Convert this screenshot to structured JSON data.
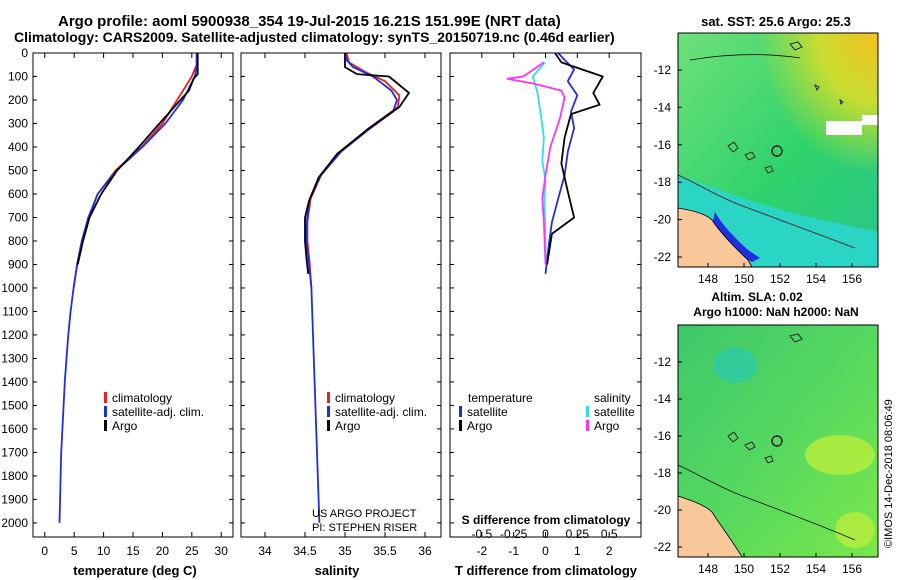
{
  "header": {
    "line1": "Argo profile: aoml 5900938_354 19-Jul-2015 16.21S 151.99E (NRT data)",
    "line2": "Climatology: CARS2009. Satellite-adjusted climatology: synTS_20150719.nc (0.46d earlier)"
  },
  "colors": {
    "climatology": "#e8231d",
    "satellite": "#1f2ee0",
    "argo": "#000000",
    "argo_s": "#ff33ff",
    "sat_s": "#2ee0e0",
    "land": "#f8c89a"
  },
  "chart_data": [
    {
      "type": "line",
      "id": "temperature",
      "xlabel": "temperature (deg C)",
      "xlim": [
        -2,
        32
      ],
      "xticks": [
        0,
        5,
        10,
        15,
        20,
        25,
        30
      ],
      "ylim": [
        0,
        2060
      ],
      "yticks": [
        0,
        100,
        200,
        300,
        400,
        500,
        600,
        700,
        800,
        900,
        1000,
        1100,
        1200,
        1300,
        1400,
        1500,
        1600,
        1700,
        1800,
        1900,
        2000
      ],
      "series": [
        {
          "name": "climatology",
          "color": "#e8231d",
          "points": [
            [
              25.8,
              0
            ],
            [
              25.8,
              50
            ],
            [
              25.0,
              100
            ],
            [
              22.5,
              200
            ],
            [
              20.0,
              300
            ],
            [
              16.5,
              400
            ],
            [
              12.0,
              500
            ],
            [
              9.0,
              600
            ],
            [
              7.5,
              700
            ],
            [
              6.3,
              800
            ],
            [
              5.5,
              900
            ],
            [
              4.9,
              1000
            ]
          ]
        },
        {
          "name": "satellite-adj. clim.",
          "color": "#1f2ee0",
          "points": [
            [
              25.9,
              0
            ],
            [
              25.9,
              50
            ],
            [
              25.5,
              100
            ],
            [
              23.5,
              200
            ],
            [
              20.5,
              300
            ],
            [
              16.6,
              400
            ],
            [
              12.2,
              500
            ],
            [
              9.0,
              600
            ],
            [
              7.4,
              700
            ],
            [
              6.3,
              800
            ],
            [
              5.5,
              900
            ],
            [
              4.9,
              1000
            ],
            [
              4.4,
              1100
            ],
            [
              4.0,
              1200
            ],
            [
              3.7,
              1300
            ],
            [
              3.4,
              1400
            ],
            [
              3.2,
              1500
            ],
            [
              3.0,
              1600
            ],
            [
              2.8,
              1700
            ],
            [
              2.7,
              1800
            ],
            [
              2.6,
              1900
            ],
            [
              2.5,
              2000
            ]
          ]
        },
        {
          "name": "Argo",
          "color": "#000000",
          "points": [
            [
              26.0,
              0
            ],
            [
              26.0,
              90
            ],
            [
              25.3,
              110
            ],
            [
              24.5,
              160
            ],
            [
              22.0,
              230
            ],
            [
              19.5,
              300
            ],
            [
              16.0,
              400
            ],
            [
              12.3,
              500
            ],
            [
              9.6,
              600
            ],
            [
              7.6,
              700
            ],
            [
              6.5,
              800
            ],
            [
              5.6,
              900
            ]
          ]
        }
      ],
      "legend": {
        "position": "bottom-right",
        "entries": [
          "climatology",
          "satellite-adj. clim.",
          "Argo"
        ]
      }
    },
    {
      "type": "line",
      "id": "salinity",
      "xlabel": "salinity",
      "xlim": [
        33.7,
        36.2
      ],
      "xticks": [
        34,
        34.5,
        35,
        35.5,
        36
      ],
      "ylim": [
        0,
        2060
      ],
      "series": [
        {
          "name": "climatology",
          "color": "#e8231d",
          "points": [
            [
              35.02,
              0
            ],
            [
              35.05,
              40
            ],
            [
              35.25,
              80
            ],
            [
              35.5,
              120
            ],
            [
              35.68,
              180
            ],
            [
              35.66,
              230
            ],
            [
              35.3,
              320
            ],
            [
              34.95,
              420
            ],
            [
              34.7,
              520
            ],
            [
              34.57,
              620
            ],
            [
              34.53,
              720
            ],
            [
              34.53,
              800
            ],
            [
              34.56,
              900
            ],
            [
              34.58,
              1000
            ]
          ]
        },
        {
          "name": "satellite-adj. clim.",
          "color": "#1f2ee0",
          "points": [
            [
              35.0,
              0
            ],
            [
              35.02,
              30
            ],
            [
              35.1,
              60
            ],
            [
              35.35,
              100
            ],
            [
              35.58,
              160
            ],
            [
              35.65,
              200
            ],
            [
              35.6,
              250
            ],
            [
              35.28,
              330
            ],
            [
              34.95,
              420
            ],
            [
              34.7,
              520
            ],
            [
              34.56,
              620
            ],
            [
              34.52,
              720
            ],
            [
              34.52,
              800
            ],
            [
              34.55,
              900
            ],
            [
              34.58,
              1000
            ],
            [
              34.6,
              1200
            ],
            [
              34.62,
              1400
            ],
            [
              34.64,
              1600
            ],
            [
              34.66,
              1800
            ],
            [
              34.68,
              2000
            ]
          ]
        },
        {
          "name": "Argo",
          "color": "#000000",
          "points": [
            [
              35.0,
              0
            ],
            [
              35.0,
              60
            ],
            [
              35.15,
              90
            ],
            [
              35.55,
              100
            ],
            [
              35.8,
              170
            ],
            [
              35.68,
              230
            ],
            [
              35.3,
              320
            ],
            [
              34.9,
              430
            ],
            [
              34.67,
              530
            ],
            [
              34.55,
              630
            ],
            [
              34.5,
              700
            ],
            [
              34.5,
              800
            ],
            [
              34.52,
              880
            ],
            [
              34.54,
              940
            ]
          ]
        }
      ],
      "legend": {
        "position": "bottom-right",
        "entries": [
          "climatology",
          "satellite-adj. clim.",
          "Argo"
        ]
      },
      "annotation": [
        "US ARGO PROJECT",
        "PI: STEPHEN RISER"
      ]
    },
    {
      "type": "line",
      "id": "difference",
      "xlabel": "T difference from climatology",
      "xlabel_top": "S difference from climatology",
      "xlim": [
        -3,
        3
      ],
      "xticks": [
        -2,
        -1,
        0,
        1,
        2
      ],
      "xticks_s": [
        "-0.5",
        "-0.25",
        "0",
        "0.25",
        "0.5"
      ],
      "ylim": [
        0,
        2060
      ],
      "series": [
        {
          "name": "temperature satellite",
          "color": "#1f2ee0",
          "points": [
            [
              0.4,
              0
            ],
            [
              0.6,
              30
            ],
            [
              0.9,
              70
            ],
            [
              0.7,
              120
            ],
            [
              1.0,
              180
            ],
            [
              0.8,
              250
            ],
            [
              0.9,
              320
            ],
            [
              0.7,
              420
            ],
            [
              0.6,
              520
            ],
            [
              0.4,
              620
            ],
            [
              0.2,
              720
            ],
            [
              0.1,
              820
            ],
            [
              0.0,
              940
            ]
          ]
        },
        {
          "name": "temperature Argo",
          "color": "#000000",
          "points": [
            [
              0.3,
              0
            ],
            [
              0.5,
              40
            ],
            [
              1.8,
              100
            ],
            [
              1.5,
              170
            ],
            [
              1.7,
              220
            ],
            [
              0.8,
              260
            ],
            [
              0.6,
              360
            ],
            [
              0.5,
              470
            ],
            [
              0.7,
              590
            ],
            [
              0.9,
              700
            ],
            [
              0.2,
              770
            ],
            [
              0.05,
              900
            ]
          ]
        },
        {
          "name": "salinity satellite",
          "color": "#2ee0e0",
          "points": [
            [
              -0.02,
              40
            ],
            [
              -0.4,
              100
            ],
            [
              -0.25,
              170
            ],
            [
              -0.15,
              260
            ],
            [
              -0.05,
              360
            ],
            [
              -0.1,
              460
            ],
            [
              0.0,
              540
            ],
            [
              -0.03,
              620
            ],
            [
              -0.02,
              700
            ],
            [
              0.0,
              800
            ],
            [
              0.0,
              900
            ]
          ]
        },
        {
          "name": "salinity Argo",
          "color": "#ff33ff",
          "points": [
            [
              -0.05,
              40
            ],
            [
              -0.7,
              100
            ],
            [
              -1.2,
              110
            ],
            [
              -0.4,
              130
            ],
            [
              0.5,
              160
            ],
            [
              0.6,
              190
            ],
            [
              0.45,
              280
            ],
            [
              0.15,
              400
            ],
            [
              0.0,
              520
            ],
            [
              -0.1,
              620
            ],
            [
              -0.05,
              720
            ],
            [
              0.0,
              900
            ]
          ]
        }
      ],
      "legend": {
        "position": "bottom",
        "left_title": "temperature",
        "right_title": "salinity",
        "left_entries": [
          "satellite",
          "Argo"
        ],
        "right_entries": [
          "satellite",
          "Argo"
        ]
      }
    }
  ],
  "map_sst": {
    "title": "sat. SST: 25.6 Argo: 25.3",
    "yticks": [
      "-12",
      "-14",
      "-16",
      "-18",
      "-20",
      "-22"
    ],
    "xticks": [
      "148",
      "150",
      "152",
      "154",
      "156"
    ]
  },
  "map_sla": {
    "title1": "Altim. SLA: 0.02",
    "title2": "Argo h1000: NaN h2000: NaN",
    "yticks": [
      "-12",
      "-14",
      "-16",
      "-18",
      "-20",
      "-22"
    ],
    "xticks": [
      "148",
      "150",
      "152",
      "154",
      "156"
    ]
  },
  "credit": "©IMOS 14-Dec-2018 08:06:49"
}
